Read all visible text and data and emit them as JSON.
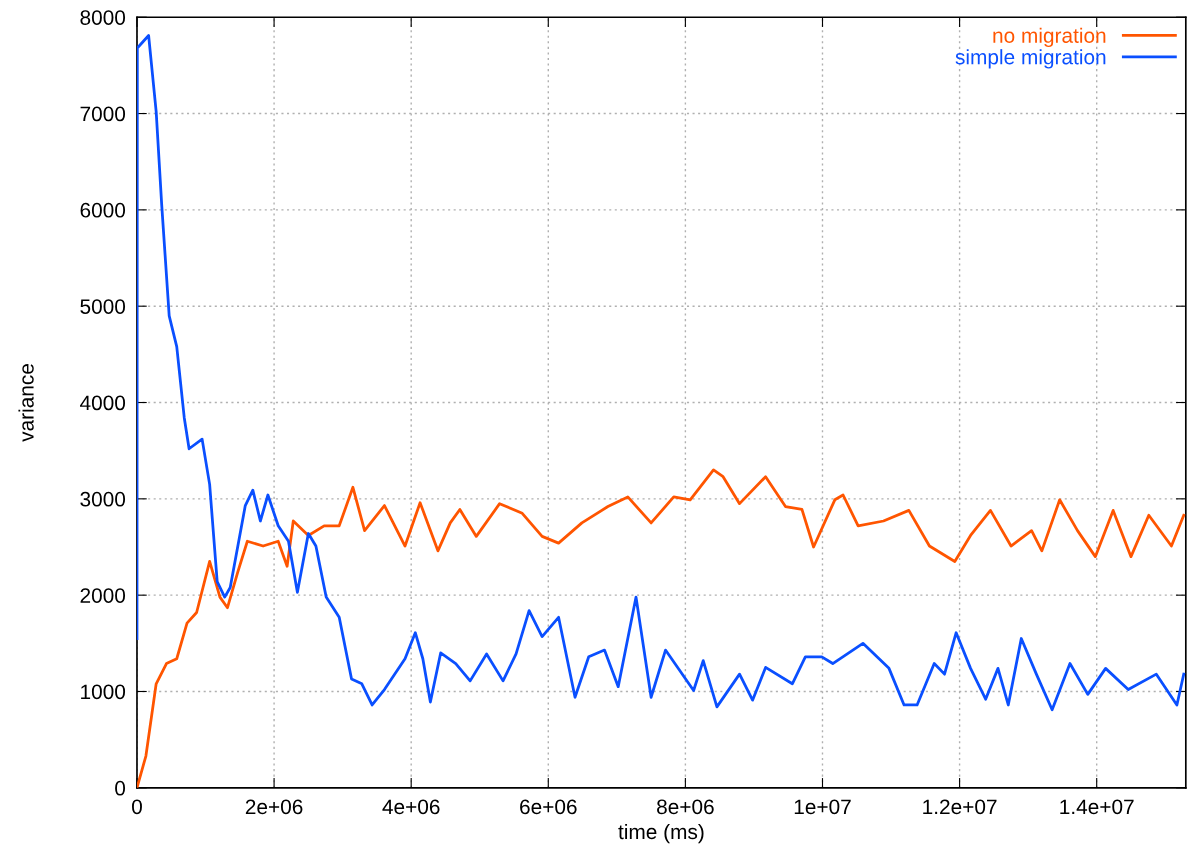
{
  "chart_data": {
    "type": "line",
    "xlabel": "time (ms)",
    "ylabel": "variance",
    "xlim": [
      0,
      15300000
    ],
    "ylim": [
      0,
      8000
    ],
    "xticks": [
      0,
      {
        "value": 2000000,
        "label": "2e+06"
      },
      {
        "value": 4000000,
        "label": "4e+06"
      },
      {
        "value": 6000000,
        "label": "6e+06"
      },
      {
        "value": 8000000,
        "label": "8e+06"
      },
      {
        "value": 10000000,
        "label": "1e+07"
      },
      {
        "value": 12000000,
        "label": "1.2e+07"
      },
      {
        "value": 14000000,
        "label": "1.4e+07"
      }
    ],
    "yticks": [
      0,
      1000,
      2000,
      3000,
      4000,
      5000,
      6000,
      7000,
      8000
    ],
    "grid": true,
    "legend": "top right",
    "line_style": "solid",
    "marker": "none",
    "series": [
      {
        "name": "no migration",
        "color": "#ff5500",
        "x": [
          0,
          130000,
          280000,
          430000,
          580000,
          730000,
          870000,
          1060000,
          1210000,
          1320000,
          1470000,
          1610000,
          1840000,
          2060000,
          2190000,
          2280000,
          2500000,
          2730000,
          2950000,
          3150000,
          3320000,
          3610000,
          3910000,
          4130000,
          4390000,
          4570000,
          4710000,
          4950000,
          5290000,
          5620000,
          5910000,
          6150000,
          6490000,
          6870000,
          7160000,
          7500000,
          7830000,
          8070000,
          8410000,
          8550000,
          8790000,
          9170000,
          9460000,
          9700000,
          9870000,
          10180000,
          10300000,
          10520000,
          10890000,
          11260000,
          11560000,
          11930000,
          12160000,
          12450000,
          12750000,
          13050000,
          13200000,
          13460000,
          13720000,
          13980000,
          14240000,
          14500000,
          14760000,
          15090000,
          15270000
        ],
        "values": [
          0,
          330,
          1080,
          1290,
          1340,
          1710,
          1820,
          2350,
          1980,
          1870,
          2240,
          2560,
          2510,
          2560,
          2300,
          2770,
          2620,
          2720,
          2720,
          3120,
          2670,
          2930,
          2510,
          2960,
          2460,
          2750,
          2890,
          2610,
          2950,
          2850,
          2610,
          2540,
          2750,
          2920,
          3020,
          2750,
          3020,
          2990,
          3300,
          3230,
          2950,
          3230,
          2920,
          2890,
          2500,
          2990,
          3040,
          2720,
          2770,
          2880,
          2510,
          2350,
          2620,
          2880,
          2510,
          2670,
          2460,
          2990,
          2670,
          2400,
          2880,
          2400,
          2830,
          2510,
          2830
        ]
      },
      {
        "name": "simple migration",
        "color": "#0a4fff",
        "x": [
          0,
          5000,
          170000,
          280000,
          360000,
          470000,
          580000,
          690000,
          760000,
          950000,
          1060000,
          1170000,
          1280000,
          1360000,
          1580000,
          1690000,
          1800000,
          1910000,
          2060000,
          2210000,
          2340000,
          2500000,
          2610000,
          2760000,
          2950000,
          3130000,
          3280000,
          3430000,
          3610000,
          3910000,
          4060000,
          4170000,
          4280000,
          4430000,
          4650000,
          4860000,
          5100000,
          5340000,
          5530000,
          5720000,
          5910000,
          6150000,
          6390000,
          6590000,
          6820000,
          7020000,
          7280000,
          7500000,
          7710000,
          8120000,
          8260000,
          8460000,
          8790000,
          8980000,
          9170000,
          9560000,
          9750000,
          9990000,
          10150000,
          10590000,
          10970000,
          11190000,
          11380000,
          11630000,
          11780000,
          11950000,
          12160000,
          12380000,
          12560000,
          12710000,
          12900000,
          13120000,
          13350000,
          13610000,
          13870000,
          14130000,
          14460000,
          14870000,
          15170000,
          15270000
        ],
        "values": [
          1550,
          7680,
          7810,
          7020,
          6060,
          4900,
          4580,
          3840,
          3520,
          3620,
          3150,
          2140,
          1980,
          2080,
          2930,
          3090,
          2770,
          3040,
          2720,
          2560,
          2030,
          2640,
          2510,
          1980,
          1770,
          1130,
          1080,
          860,
          1020,
          1340,
          1610,
          1340,
          890,
          1400,
          1290,
          1110,
          1390,
          1110,
          1390,
          1840,
          1570,
          1770,
          940,
          1360,
          1430,
          1050,
          1980,
          940,
          1430,
          1010,
          1320,
          840,
          1180,
          910,
          1250,
          1080,
          1360,
          1360,
          1290,
          1500,
          1240,
          860,
          860,
          1290,
          1180,
          1610,
          1240,
          920,
          1240,
          860,
          1550,
          1180,
          810,
          1290,
          970,
          1240,
          1020,
          1180,
          860,
          1180
        ]
      }
    ]
  }
}
